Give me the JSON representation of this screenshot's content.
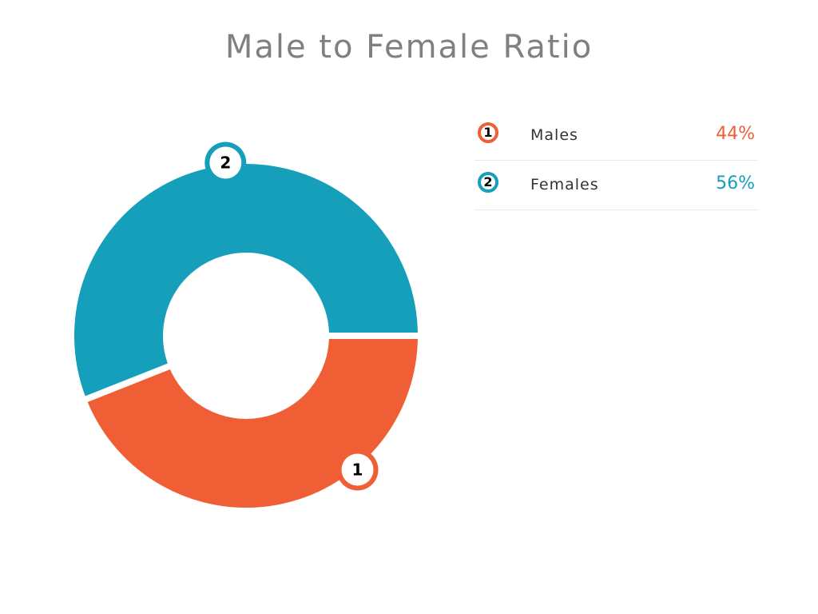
{
  "chart_data": {
    "type": "pie",
    "title": "Male to Female Ratio",
    "categories": [
      "Males",
      "Females"
    ],
    "values": [
      44,
      56
    ],
    "value_labels": [
      "44%",
      "56%"
    ],
    "markers": [
      "1",
      "2"
    ],
    "colors": [
      "#f05e35",
      "#169fba"
    ],
    "donut": true,
    "legend_position": "right"
  }
}
